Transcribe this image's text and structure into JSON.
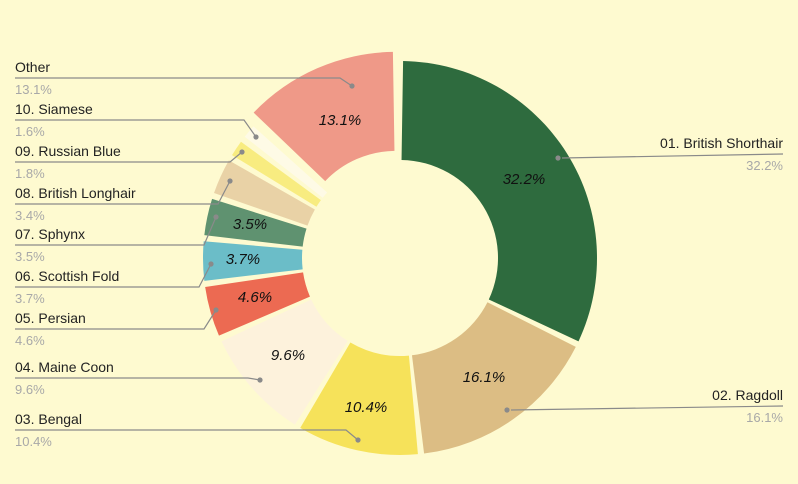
{
  "chart_data": {
    "type": "pie",
    "variant": "donut",
    "title": "",
    "slices": [
      {
        "label": "01. British Shorthair",
        "value": 32.2,
        "display": "32.2%",
        "color": "#2e6b3e"
      },
      {
        "label": "02. Ragdoll",
        "value": 16.1,
        "display": "16.1%",
        "color": "#dcbd84"
      },
      {
        "label": "03. Bengal",
        "value": 10.4,
        "display": "10.4%",
        "color": "#f6e25a"
      },
      {
        "label": "04. Maine Coon",
        "value": 9.6,
        "display": "9.6%",
        "color": "#fdf2dc"
      },
      {
        "label": "05. Persian",
        "value": 4.6,
        "display": "4.6%",
        "color": "#ec6a52"
      },
      {
        "label": "06. Scottish Fold",
        "value": 3.7,
        "display": "3.7%",
        "color": "#6bbdc8"
      },
      {
        "label": "07. Sphynx",
        "value": 3.5,
        "display": "3.5%",
        "color": "#5f9270"
      },
      {
        "label": "08. British Longhair",
        "value": 3.4,
        "display": "3.4%",
        "color": "#e9d2a6"
      },
      {
        "label": "09. Russian Blue",
        "value": 1.8,
        "display": "1.8%",
        "color": "#f8ec80"
      },
      {
        "label": "10. Siamese",
        "value": 1.6,
        "display": "1.6%",
        "color": "#fefae6"
      },
      {
        "label": "Other",
        "value": 13.1,
        "display": "13.1%",
        "color": "#ef9988"
      }
    ]
  }
}
